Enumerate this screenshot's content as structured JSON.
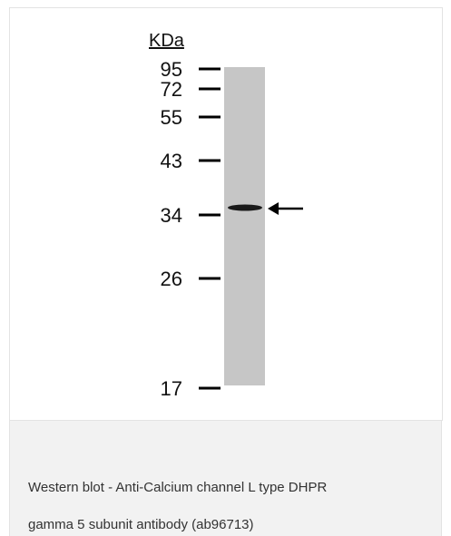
{
  "figure": {
    "unit_label": "KDa",
    "markers": [
      "95",
      "72",
      "55",
      "43",
      "34",
      "26",
      "17"
    ]
  },
  "caption": {
    "lines": [
      "Western blot - Anti-Calcium channel L type DHPR",
      "gamma 5 subunit antibody (ab96713)"
    ]
  }
}
